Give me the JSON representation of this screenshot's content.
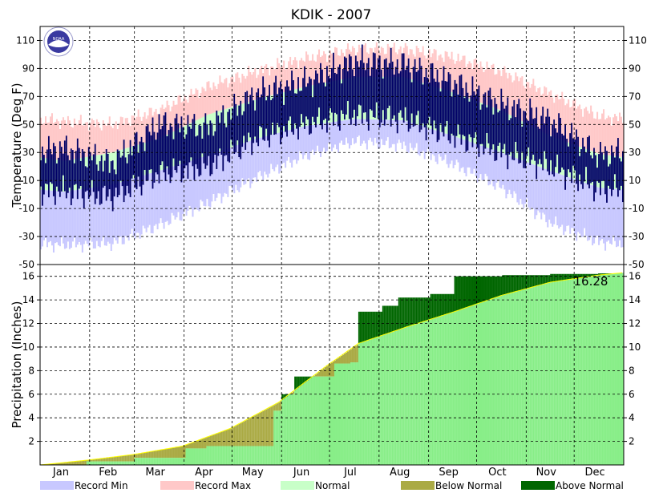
{
  "chart_data": [
    {
      "type": "bar",
      "title": "KDIK - 2007",
      "ylabel": "Temperature (Deg F)",
      "ylim": [
        -50,
        120
      ],
      "yticks": [
        -50,
        -30,
        -10,
        10,
        30,
        50,
        70,
        90,
        110
      ],
      "categories": [
        "Jan",
        "Feb",
        "Mar",
        "Apr",
        "May",
        "Jun",
        "Jul",
        "Aug",
        "Sep",
        "Oct",
        "Nov",
        "Dec"
      ],
      "grid": true,
      "record_max": [
        52,
        50,
        60,
        77,
        88,
        97,
        104,
        104,
        98,
        88,
        72,
        56
      ],
      "record_min": [
        -36,
        -35,
        -22,
        -6,
        12,
        28,
        38,
        35,
        22,
        5,
        -20,
        -34
      ],
      "normal_high": [
        24,
        30,
        40,
        57,
        68,
        77,
        84,
        84,
        73,
        60,
        42,
        29
      ],
      "normal_low": [
        2,
        7,
        17,
        28,
        40,
        49,
        54,
        53,
        42,
        30,
        17,
        5
      ],
      "observed_high": [
        33,
        22,
        50,
        48,
        72,
        80,
        95,
        93,
        80,
        64,
        53,
        28
      ],
      "observed_low": [
        2,
        -2,
        15,
        20,
        40,
        50,
        57,
        54,
        42,
        30,
        20,
        4
      ],
      "colors": {
        "record_min": "#c8c8ff",
        "record_max": "#ffc8c8",
        "normal": "#c8ffc8",
        "observed": "#000066"
      }
    },
    {
      "type": "area",
      "ylabel": "Precipitation (Inches)",
      "ylim": [
        0,
        17
      ],
      "yticks": [
        2,
        4,
        6,
        8,
        10,
        12,
        14,
        16
      ],
      "annotation": "16.28",
      "normal_cumulative": {
        "doy": [
          1,
          30,
          60,
          90,
          120,
          150,
          180,
          200,
          230,
          260,
          290,
          320,
          350,
          365
        ],
        "values": [
          0,
          0.4,
          0.9,
          1.6,
          3.1,
          5.3,
          8.4,
          10.3,
          11.7,
          13.0,
          14.4,
          15.5,
          16.1,
          16.3
        ]
      },
      "observed_cumulative": {
        "doy": [
          1,
          30,
          60,
          92,
          105,
          147,
          152,
          160,
          172,
          185,
          195,
          200,
          215,
          225,
          245,
          260,
          290,
          320,
          350,
          365
        ],
        "values": [
          0,
          0.3,
          0.6,
          1.4,
          1.6,
          4.6,
          6.0,
          7.5,
          7.5,
          8.6,
          8.7,
          13.0,
          13.5,
          14.2,
          14.5,
          16.0,
          16.1,
          16.2,
          16.25,
          16.28
        ]
      },
      "colors": {
        "normal": "#88ee88",
        "below": "#aaaa44",
        "above": "#006600",
        "normal_line": "#ffff00"
      }
    }
  ],
  "legend": [
    {
      "label": "Record Min",
      "color": "#c8c8ff"
    },
    {
      "label": "Record Max",
      "color": "#ffc8c8"
    },
    {
      "label": "Normal",
      "color": "#c8ffc8"
    },
    {
      "label": "Below Normal",
      "color": "#aaaa44"
    },
    {
      "label": "Above Normal",
      "color": "#006600"
    }
  ],
  "logo_text": "NOAA"
}
